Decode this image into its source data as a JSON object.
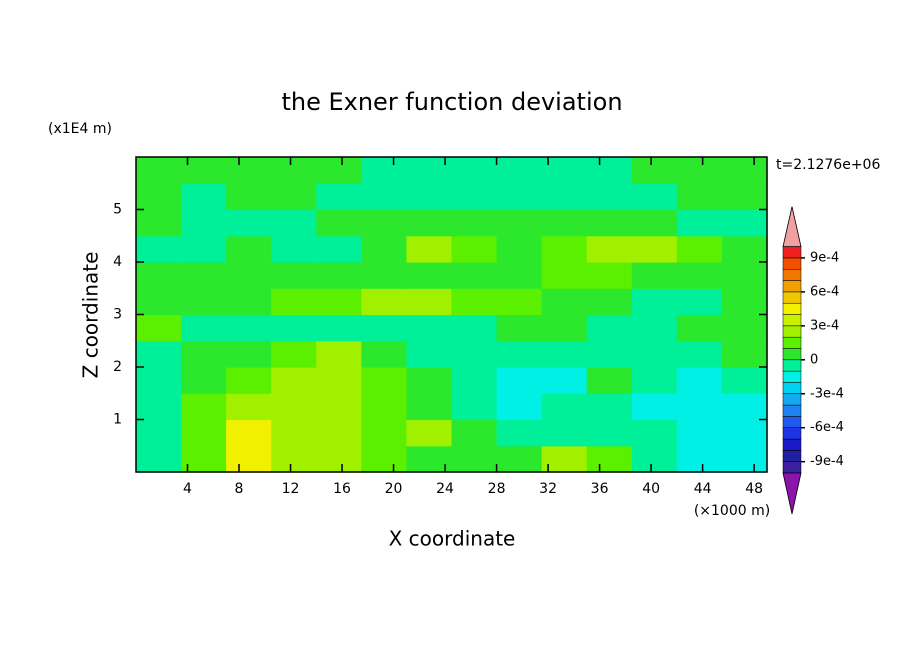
{
  "chart_data": {
    "type": "contour",
    "title": "the Exner function deviation",
    "x_label": "X coordinate",
    "y_label": "Z coordinate",
    "x_unit": "(×1000 m)",
    "y_unit": "(x1E4 m)",
    "annotation": "t=2.1276e+06",
    "xlim": [
      0,
      49
    ],
    "ylim": [
      0,
      6
    ],
    "xticks": [
      4,
      8,
      12,
      16,
      20,
      24,
      28,
      32,
      36,
      40,
      44,
      48
    ],
    "yticks": [
      1,
      2,
      3,
      4,
      5
    ],
    "x": [
      1.75,
      5.25,
      8.75,
      12.25,
      15.75,
      19.25,
      22.75,
      26.25,
      29.75,
      33.25,
      36.75,
      40.25,
      43.75,
      47.25
    ],
    "y": [
      0.25,
      0.75,
      1.25,
      1.75,
      2.25,
      2.75,
      3.25,
      3.75,
      4.25,
      4.75,
      5.25,
      5.75
    ],
    "z": [
      [
        -5e-05,
        0.00015,
        0.00045,
        0.00025,
        0.00025,
        0.00015,
        5e-05,
        5e-05,
        5e-05,
        0.00025,
        0.00015,
        -5e-05,
        -0.00015,
        -0.00015
      ],
      [
        -5e-05,
        0.00015,
        0.00045,
        0.00025,
        0.00025,
        0.00015,
        0.00025,
        5e-05,
        -5e-05,
        -5e-05,
        -5e-05,
        -5e-05,
        -0.00015,
        -0.00015
      ],
      [
        -5e-05,
        0.00015,
        0.00025,
        0.00025,
        0.00025,
        0.00015,
        5e-05,
        -5e-05,
        -0.00015,
        -5e-05,
        -5e-05,
        -0.00015,
        -0.00015,
        -0.00015
      ],
      [
        -5e-05,
        5e-05,
        0.00015,
        0.00025,
        0.00025,
        0.00015,
        5e-05,
        -5e-05,
        -0.00015,
        -0.00015,
        5e-05,
        -5e-05,
        -0.00015,
        -5e-05
      ],
      [
        -5e-05,
        5e-05,
        5e-05,
        0.00015,
        0.00025,
        5e-05,
        -5e-05,
        -5e-05,
        -5e-05,
        -5e-05,
        -5e-05,
        -5e-05,
        -5e-05,
        5e-05
      ],
      [
        0.00015,
        -5e-05,
        -5e-05,
        -5e-05,
        -5e-05,
        -5e-05,
        -5e-05,
        -5e-05,
        5e-05,
        5e-05,
        -5e-05,
        -5e-05,
        5e-05,
        5e-05
      ],
      [
        5e-05,
        5e-05,
        5e-05,
        0.00015,
        0.00015,
        0.00025,
        0.00025,
        0.00015,
        0.00015,
        5e-05,
        5e-05,
        -5e-05,
        -5e-05,
        5e-05
      ],
      [
        5e-05,
        5e-05,
        5e-05,
        5e-05,
        5e-05,
        5e-05,
        5e-05,
        5e-05,
        5e-05,
        0.00015,
        0.00015,
        5e-05,
        5e-05,
        5e-05
      ],
      [
        -5e-05,
        -5e-05,
        5e-05,
        -5e-05,
        -5e-05,
        5e-05,
        0.00025,
        0.00015,
        5e-05,
        0.00015,
        0.00025,
        0.00025,
        0.00015,
        5e-05
      ],
      [
        5e-05,
        -5e-05,
        -5e-05,
        -5e-05,
        5e-05,
        5e-05,
        5e-05,
        5e-05,
        5e-05,
        5e-05,
        5e-05,
        5e-05,
        -5e-05,
        -5e-05
      ],
      [
        5e-05,
        -5e-05,
        5e-05,
        5e-05,
        -5e-05,
        -5e-05,
        -5e-05,
        -5e-05,
        -5e-05,
        -5e-05,
        -5e-05,
        -5e-05,
        5e-05,
        5e-05
      ],
      [
        5e-05,
        5e-05,
        5e-05,
        5e-05,
        5e-05,
        -5e-05,
        -5e-05,
        -5e-05,
        -5e-05,
        -5e-05,
        -5e-05,
        5e-05,
        5e-05,
        5e-05
      ]
    ],
    "levels": [
      -0.001,
      -0.0009,
      -0.0008,
      -0.0007,
      -0.0006,
      -0.0005,
      -0.0004,
      -0.0003,
      -0.0002,
      -0.0001,
      0,
      0.0001,
      0.0002,
      0.0003,
      0.0004,
      0.0005,
      0.0006,
      0.0007,
      0.0008,
      0.0009,
      0.001
    ],
    "colors": [
      "#3c1e9e",
      "#2020a0",
      "#1a1ac8",
      "#1e32e6",
      "#1e5af0",
      "#1e82f0",
      "#14aaf0",
      "#00d2f0",
      "#00f0e6",
      "#00f09a",
      "#2ce82c",
      "#5af000",
      "#a0f000",
      "#c8f000",
      "#f0f000",
      "#f0c800",
      "#f0a000",
      "#f07800",
      "#f05000",
      "#f01e1e"
    ],
    "extend_colors": [
      "#8c14aa",
      "#f0a0a0"
    ],
    "colorbar_ticks": [
      {
        "value": 0.0009,
        "label": "9e-4"
      },
      {
        "value": 0.0006,
        "label": "6e-4"
      },
      {
        "value": 0.0003,
        "label": "3e-4"
      },
      0,
      {
        "value": -0.0003,
        "label": "-3e-4"
      },
      {
        "value": -0.0006,
        "label": "-6e-4"
      },
      {
        "value": -0.0009,
        "label": "-9e-4"
      }
    ]
  }
}
